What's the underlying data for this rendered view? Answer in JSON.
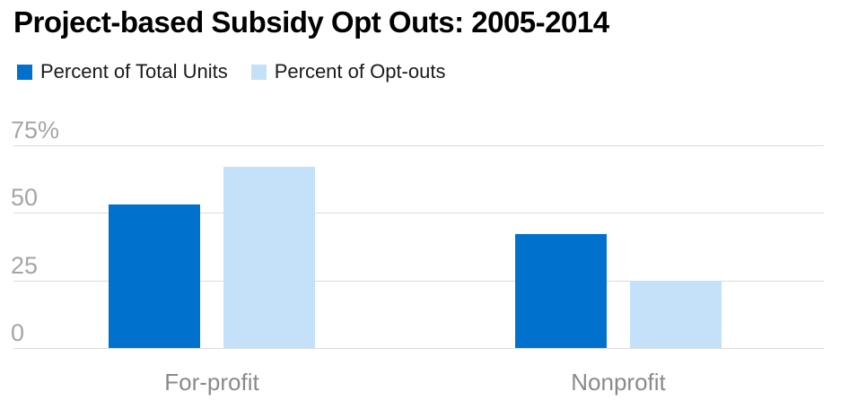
{
  "title": "Project-based Subsidy Opt Outs: 2005-2014",
  "legend": {
    "items": [
      {
        "label": "Percent of Total Units",
        "color": "#0072CE"
      },
      {
        "label": "Percent of Opt-outs",
        "color": "#C4E1F9"
      }
    ]
  },
  "chart_data": {
    "type": "bar",
    "title": "Project-based Subsidy Opt Outs: 2005-2014",
    "categories": [
      "For-profit",
      "Nonprofit"
    ],
    "series": [
      {
        "name": "Percent of Total Units",
        "color": "#0072CE",
        "values": [
          53,
          42
        ]
      },
      {
        "name": "Percent of Opt-outs",
        "color": "#C4E1F9",
        "values": [
          67,
          25
        ]
      }
    ],
    "xlabel": "",
    "ylabel": "",
    "ylim": [
      0,
      75
    ],
    "yticks": [
      {
        "value": 0,
        "label": "0"
      },
      {
        "value": 25,
        "label": "25"
      },
      {
        "value": 50,
        "label": "50"
      },
      {
        "value": 75,
        "label": "75%"
      }
    ],
    "grid": true,
    "legend_position": "top-left"
  },
  "colors": {
    "background": "#FFFFFF",
    "grid": "#DCDCDC",
    "tick_label": "#A5A5A5",
    "category_label": "#8A8A8A",
    "title": "#000000",
    "legend_text": "#1A1A1A"
  }
}
